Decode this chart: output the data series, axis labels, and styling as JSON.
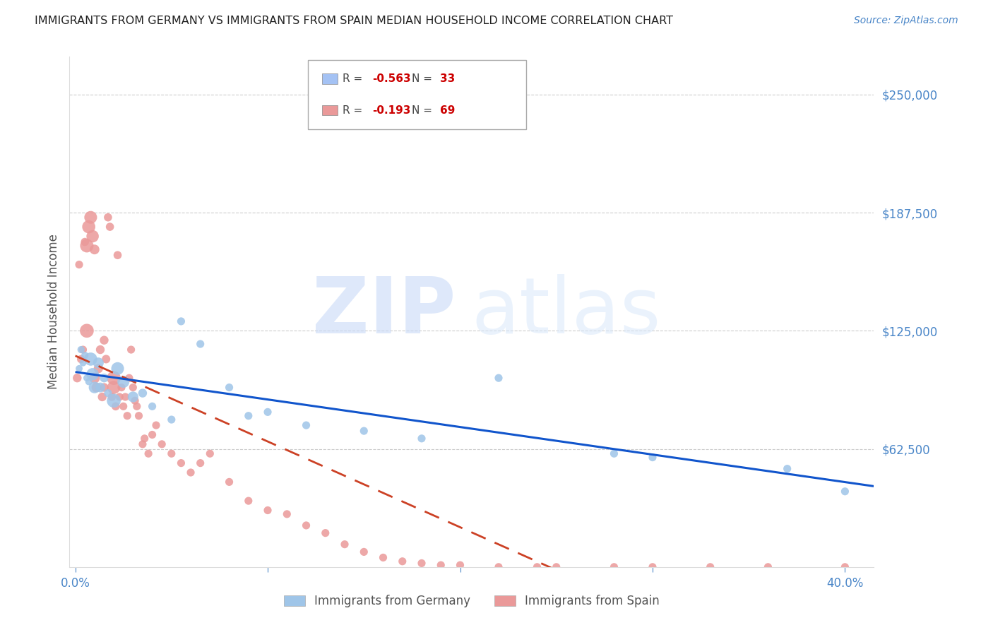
{
  "title": "IMMIGRANTS FROM GERMANY VS IMMIGRANTS FROM SPAIN MEDIAN HOUSEHOLD INCOME CORRELATION CHART",
  "source": "Source: ZipAtlas.com",
  "ylabel": "Median Household Income",
  "ylim": [
    0,
    270000
  ],
  "xlim": [
    -0.003,
    0.415
  ],
  "watermark_zip": "ZIP",
  "watermark_atlas": "atlas",
  "germany_color": "#9fc5e8",
  "spain_color": "#ea9999",
  "germany_line_color": "#1155cc",
  "spain_line_color": "#cc4125",
  "germany_R": "-0.563",
  "germany_N": "33",
  "spain_R": "-0.193",
  "spain_N": "69",
  "axis_color": "#4a86c8",
  "grid_color": "#cccccc",
  "background_color": "#ffffff",
  "legend_box_color_germany": "#a4c2f4",
  "legend_box_color_spain": "#ea9999",
  "yticks": [
    62500,
    125000,
    187500,
    250000
  ],
  "ytick_labels": [
    "$62,500",
    "$125,000",
    "$187,500",
    "$250,000"
  ],
  "germany_x": [
    0.002,
    0.003,
    0.004,
    0.005,
    0.006,
    0.007,
    0.008,
    0.009,
    0.01,
    0.012,
    0.013,
    0.015,
    0.017,
    0.02,
    0.022,
    0.025,
    0.03,
    0.035,
    0.04,
    0.05,
    0.055,
    0.065,
    0.08,
    0.09,
    0.1,
    0.12,
    0.15,
    0.18,
    0.22,
    0.28,
    0.3,
    0.37,
    0.4
  ],
  "germany_y": [
    105000,
    115000,
    108000,
    112000,
    100000,
    98000,
    110000,
    102000,
    95000,
    108000,
    95000,
    100000,
    92000,
    88000,
    105000,
    98000,
    90000,
    92000,
    85000,
    78000,
    130000,
    118000,
    95000,
    80000,
    82000,
    75000,
    72000,
    68000,
    100000,
    60000,
    58000,
    52000,
    40000
  ],
  "germany_size": [
    50,
    55,
    50,
    55,
    50,
    50,
    180,
    160,
    140,
    120,
    100,
    80,
    65,
    200,
    170,
    150,
    120,
    80,
    65,
    65,
    65,
    65,
    65,
    65,
    65,
    65,
    65,
    65,
    65,
    65,
    65,
    65,
    65
  ],
  "spain_x": [
    0.001,
    0.002,
    0.003,
    0.004,
    0.005,
    0.006,
    0.006,
    0.007,
    0.008,
    0.009,
    0.01,
    0.01,
    0.011,
    0.012,
    0.013,
    0.014,
    0.015,
    0.015,
    0.016,
    0.017,
    0.018,
    0.019,
    0.02,
    0.02,
    0.021,
    0.022,
    0.023,
    0.024,
    0.025,
    0.026,
    0.027,
    0.028,
    0.029,
    0.03,
    0.031,
    0.032,
    0.033,
    0.035,
    0.036,
    0.038,
    0.04,
    0.042,
    0.045,
    0.05,
    0.055,
    0.06,
    0.065,
    0.07,
    0.08,
    0.09,
    0.1,
    0.11,
    0.12,
    0.13,
    0.14,
    0.15,
    0.16,
    0.17,
    0.18,
    0.19,
    0.2,
    0.22,
    0.24,
    0.25,
    0.28,
    0.3,
    0.33,
    0.36,
    0.4
  ],
  "spain_y": [
    100000,
    160000,
    110000,
    115000,
    172000,
    125000,
    170000,
    180000,
    185000,
    175000,
    100000,
    168000,
    95000,
    105000,
    115000,
    90000,
    120000,
    95000,
    110000,
    185000,
    180000,
    90000,
    100000,
    95000,
    85000,
    165000,
    90000,
    95000,
    85000,
    90000,
    80000,
    100000,
    115000,
    95000,
    88000,
    85000,
    80000,
    65000,
    68000,
    60000,
    70000,
    75000,
    65000,
    60000,
    55000,
    50000,
    55000,
    60000,
    45000,
    35000,
    30000,
    28000,
    22000,
    18000,
    12000,
    8000,
    5000,
    3000,
    2000,
    1000,
    1000,
    0,
    0,
    0,
    0,
    0,
    0,
    0,
    0
  ],
  "spain_size": [
    80,
    65,
    70,
    65,
    70,
    200,
    190,
    180,
    170,
    160,
    120,
    100,
    100,
    90,
    80,
    80,
    80,
    80,
    75,
    70,
    70,
    70,
    200,
    180,
    70,
    70,
    65,
    65,
    65,
    65,
    65,
    65,
    65,
    65,
    65,
    65,
    65,
    65,
    65,
    65,
    65,
    65,
    65,
    65,
    65,
    65,
    65,
    65,
    65,
    65,
    65,
    65,
    65,
    65,
    65,
    65,
    65,
    65,
    65,
    65,
    65,
    65,
    65,
    65,
    65,
    65,
    65,
    65,
    65
  ]
}
